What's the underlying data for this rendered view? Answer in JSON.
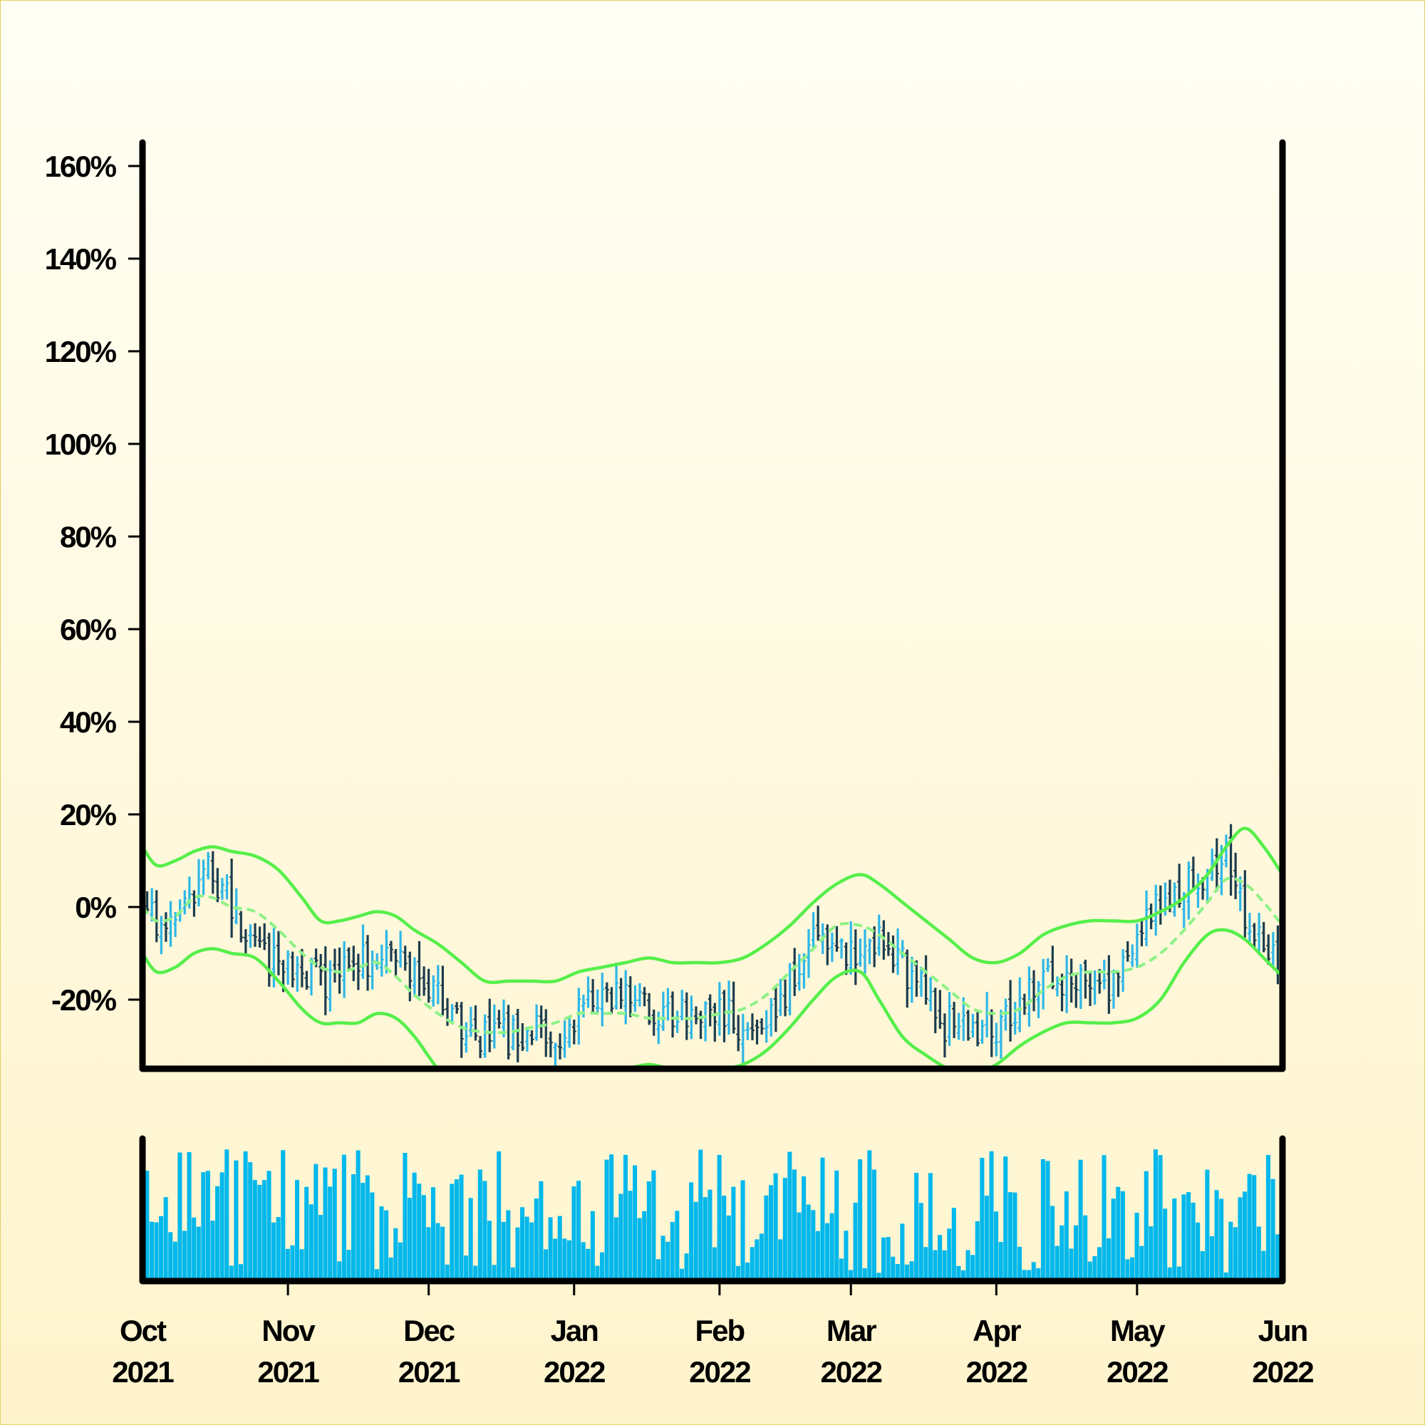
{
  "chart_data": {
    "type": "ohlc",
    "title": "",
    "xlabel": "",
    "ylabel": "",
    "x_range": [
      "2021-10-01",
      "2022-06-01"
    ],
    "x_ticks": [
      {
        "date": "2021-10-01",
        "month": "Oct",
        "year": "2021"
      },
      {
        "date": "2021-11-01",
        "month": "Nov",
        "year": "2021"
      },
      {
        "date": "2021-12-01",
        "month": "Dec",
        "year": "2021"
      },
      {
        "date": "2022-01-01",
        "month": "Jan",
        "year": "2022"
      },
      {
        "date": "2022-02-01",
        "month": "Feb",
        "year": "2022"
      },
      {
        "date": "2022-03-01",
        "month": "Mar",
        "year": "2022"
      },
      {
        "date": "2022-04-01",
        "month": "Apr",
        "year": "2022"
      },
      {
        "date": "2022-05-01",
        "month": "May",
        "year": "2022"
      },
      {
        "date": "2022-06-01",
        "month": "Jun",
        "year": "2022"
      }
    ],
    "y_ticks": [
      {
        "value": -20,
        "label": "-20%"
      },
      {
        "value": 0,
        "label": "0%"
      },
      {
        "value": 20,
        "label": "20%"
      },
      {
        "value": 40,
        "label": "40%"
      },
      {
        "value": 60,
        "label": "60%"
      },
      {
        "value": 80,
        "label": "80%"
      },
      {
        "value": 100,
        "label": "100%"
      },
      {
        "value": 120,
        "label": "120%"
      },
      {
        "value": 140,
        "label": "140%"
      },
      {
        "value": 160,
        "label": "160%"
      }
    ],
    "ylim": [
      -34,
      165
    ],
    "y_unit": "%",
    "grid": false,
    "legend": "none",
    "colors": {
      "up": "#2db7e8",
      "down": "#1c3c4e",
      "bands": "#55ef4a",
      "middle": "#8df286",
      "volume": "#00b8ec",
      "axis": "#000000"
    },
    "bollinger_bands": {
      "x": [
        "2021-10-01",
        "2021-10-04",
        "2021-10-08",
        "2021-10-12",
        "2021-10-16",
        "2021-10-20",
        "2021-10-25",
        "2021-10-30",
        "2021-11-04",
        "2021-11-08",
        "2021-11-12",
        "2021-11-16",
        "2021-11-20",
        "2021-11-24",
        "2021-11-28",
        "2021-12-03",
        "2021-12-08",
        "2021-12-13",
        "2021-12-18",
        "2021-12-23",
        "2021-12-28",
        "2022-01-02",
        "2022-01-07",
        "2022-01-12",
        "2022-01-17",
        "2022-01-22",
        "2022-01-27",
        "2022-02-01",
        "2022-02-06",
        "2022-02-11",
        "2022-02-16",
        "2022-02-21",
        "2022-02-26",
        "2022-03-03",
        "2022-03-07",
        "2022-03-12",
        "2022-03-17",
        "2022-03-22",
        "2022-03-27",
        "2022-04-01",
        "2022-04-06",
        "2022-04-11",
        "2022-04-16",
        "2022-04-21",
        "2022-04-26",
        "2022-05-01",
        "2022-05-06",
        "2022-05-11",
        "2022-05-16",
        "2022-05-20",
        "2022-05-24",
        "2022-05-28",
        "2022-06-01"
      ],
      "upper": [
        13,
        9,
        10,
        12,
        13,
        12,
        11,
        8,
        2,
        -3,
        -3,
        -2,
        -1,
        -2,
        -5,
        -8,
        -12,
        -16,
        -16,
        -16,
        -16,
        -14,
        -13,
        -12,
        -11,
        -12,
        -12,
        -12,
        -11,
        -8,
        -4,
        1,
        5,
        7,
        5,
        1,
        -3,
        -7,
        -11,
        -12,
        -10,
        -6,
        -4,
        -3,
        -3,
        -3,
        -1,
        2,
        7,
        13,
        17,
        13,
        7
      ],
      "middle": [
        0,
        -3,
        -2,
        2,
        2,
        0,
        -1,
        -5,
        -10,
        -13,
        -14,
        -13,
        -12,
        -15,
        -19,
        -23,
        -26,
        -27,
        -27,
        -26,
        -25,
        -23,
        -23,
        -23,
        -24,
        -24,
        -24,
        -23,
        -22,
        -19,
        -14,
        -9,
        -4,
        -4,
        -6,
        -10,
        -14,
        -18,
        -22,
        -23,
        -22,
        -18,
        -15,
        -14,
        -14,
        -13,
        -10,
        -5,
        1,
        6,
        5,
        1,
        -4
      ],
      "lower": [
        -10,
        -14,
        -13,
        -10,
        -9,
        -10,
        -11,
        -16,
        -22,
        -25,
        -25,
        -25,
        -23,
        -24,
        -28,
        -35,
        -40,
        -42,
        -42,
        -39,
        -37,
        -36,
        -36,
        -35,
        -34,
        -35,
        -35,
        -35,
        -34,
        -31,
        -26,
        -20,
        -15,
        -14,
        -20,
        -28,
        -32,
        -35,
        -36,
        -34,
        -30,
        -27,
        -25,
        -25,
        -25,
        -24,
        -20,
        -12,
        -6,
        -5,
        -7,
        -11,
        -15
      ]
    },
    "ohlc_summary": "Daily OHLC bars from 2021-10-01 to 2022-06-01; closes move from about 0% down to about -30% in late December, recover to about 0% around early March, fall to about -28% in early April, rise to about 15% in mid May and end near -15%.",
    "close_path": {
      "x": [
        "2021-10-01",
        "2021-10-05",
        "2021-10-10",
        "2021-10-15",
        "2021-10-20",
        "2021-10-26",
        "2021-11-02",
        "2021-11-09",
        "2021-11-16",
        "2021-11-23",
        "2021-11-30",
        "2021-12-07",
        "2021-12-14",
        "2021-12-21",
        "2021-12-28",
        "2022-01-04",
        "2022-01-11",
        "2022-01-18",
        "2022-01-25",
        "2022-02-01",
        "2022-02-08",
        "2022-02-15",
        "2022-02-22",
        "2022-03-01",
        "2022-03-07",
        "2022-03-14",
        "2022-03-21",
        "2022-03-28",
        "2022-04-04",
        "2022-04-11",
        "2022-04-18",
        "2022-04-25",
        "2022-05-02",
        "2022-05-09",
        "2022-05-15",
        "2022-05-20",
        "2022-05-25",
        "2022-06-01"
      ],
      "close": [
        0,
        -5,
        0,
        8,
        0,
        -10,
        -14,
        -16,
        -12,
        -10,
        -17,
        -24,
        -29,
        -27,
        -28,
        -22,
        -18,
        -22,
        -24,
        -23,
        -26,
        -18,
        -5,
        -10,
        -6,
        -15,
        -25,
        -27,
        -25,
        -14,
        -17,
        -18,
        -2,
        4,
        6,
        12,
        -5,
        -15
      ]
    },
    "volume": {
      "visible": true,
      "axis_labels": "none"
    }
  }
}
